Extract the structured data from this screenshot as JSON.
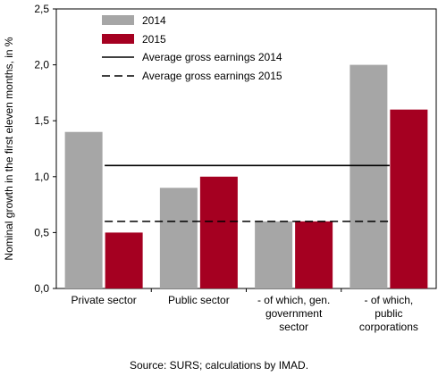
{
  "chart_data": {
    "type": "bar",
    "categories": [
      [
        "Private sector"
      ],
      [
        "Public sector"
      ],
      [
        "- of which, gen.",
        "government",
        "sector"
      ],
      [
        "- of which,",
        "public",
        "corporations"
      ]
    ],
    "series": [
      {
        "name": "2014",
        "color": "#a6a6a6",
        "values": [
          1.4,
          0.9,
          0.6,
          2.0
        ]
      },
      {
        "name": "2015",
        "color": "#a50021",
        "values": [
          0.5,
          1.0,
          0.6,
          1.6
        ]
      }
    ],
    "reference_lines": [
      {
        "name": "Average gross earnings 2014",
        "value": 1.1,
        "style": "solid",
        "color": "#000000"
      },
      {
        "name": "Average gross earnings 2015",
        "value": 0.6,
        "style": "dashed",
        "color": "#000000"
      }
    ],
    "ylabel": "Nominal growth in the first eleven months, in %",
    "ylim": [
      0,
      2.5
    ],
    "yticks": [
      "0,0",
      "0,5",
      "1,0",
      "1,5",
      "2,0",
      "2,5"
    ],
    "grid": false,
    "legend_position": "top-left"
  },
  "source": "Source: SURS; calculations by IMAD."
}
